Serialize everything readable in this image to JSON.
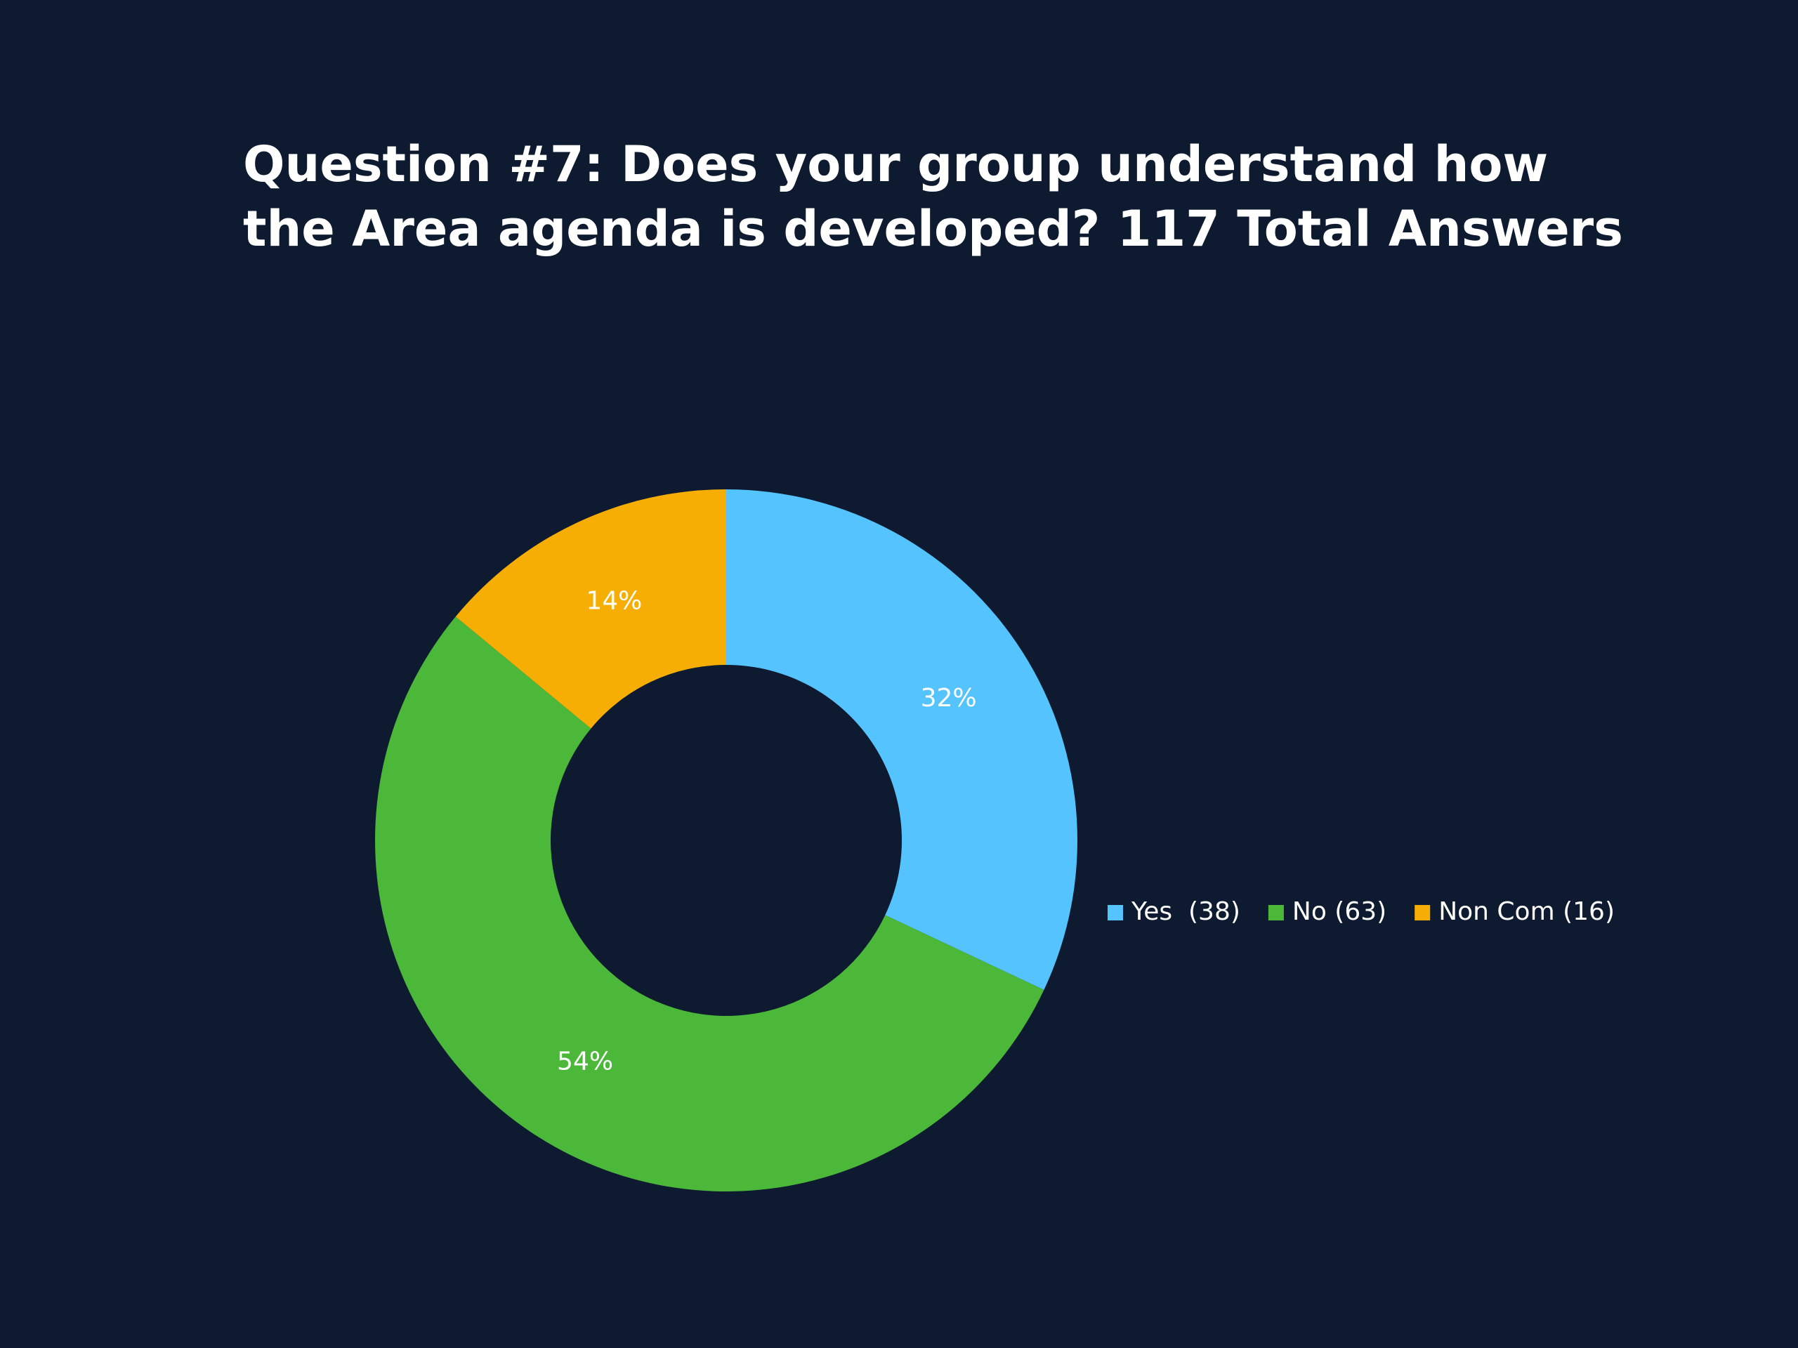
{
  "chart_data": {
    "type": "donut",
    "title": [
      "Question #7: Does your group understand how",
      "the Area agenda is developed? 117 Total Answers"
    ],
    "categories": [
      "Yes  (38)",
      "No (63)",
      "Non Com (16)"
    ],
    "values": [
      32,
      54,
      14
    ],
    "value_labels": [
      "32%",
      "54%",
      "14%"
    ],
    "colors": [
      "#55c3fd",
      "#4cb83a",
      "#f7ae04"
    ],
    "legend": "right"
  }
}
